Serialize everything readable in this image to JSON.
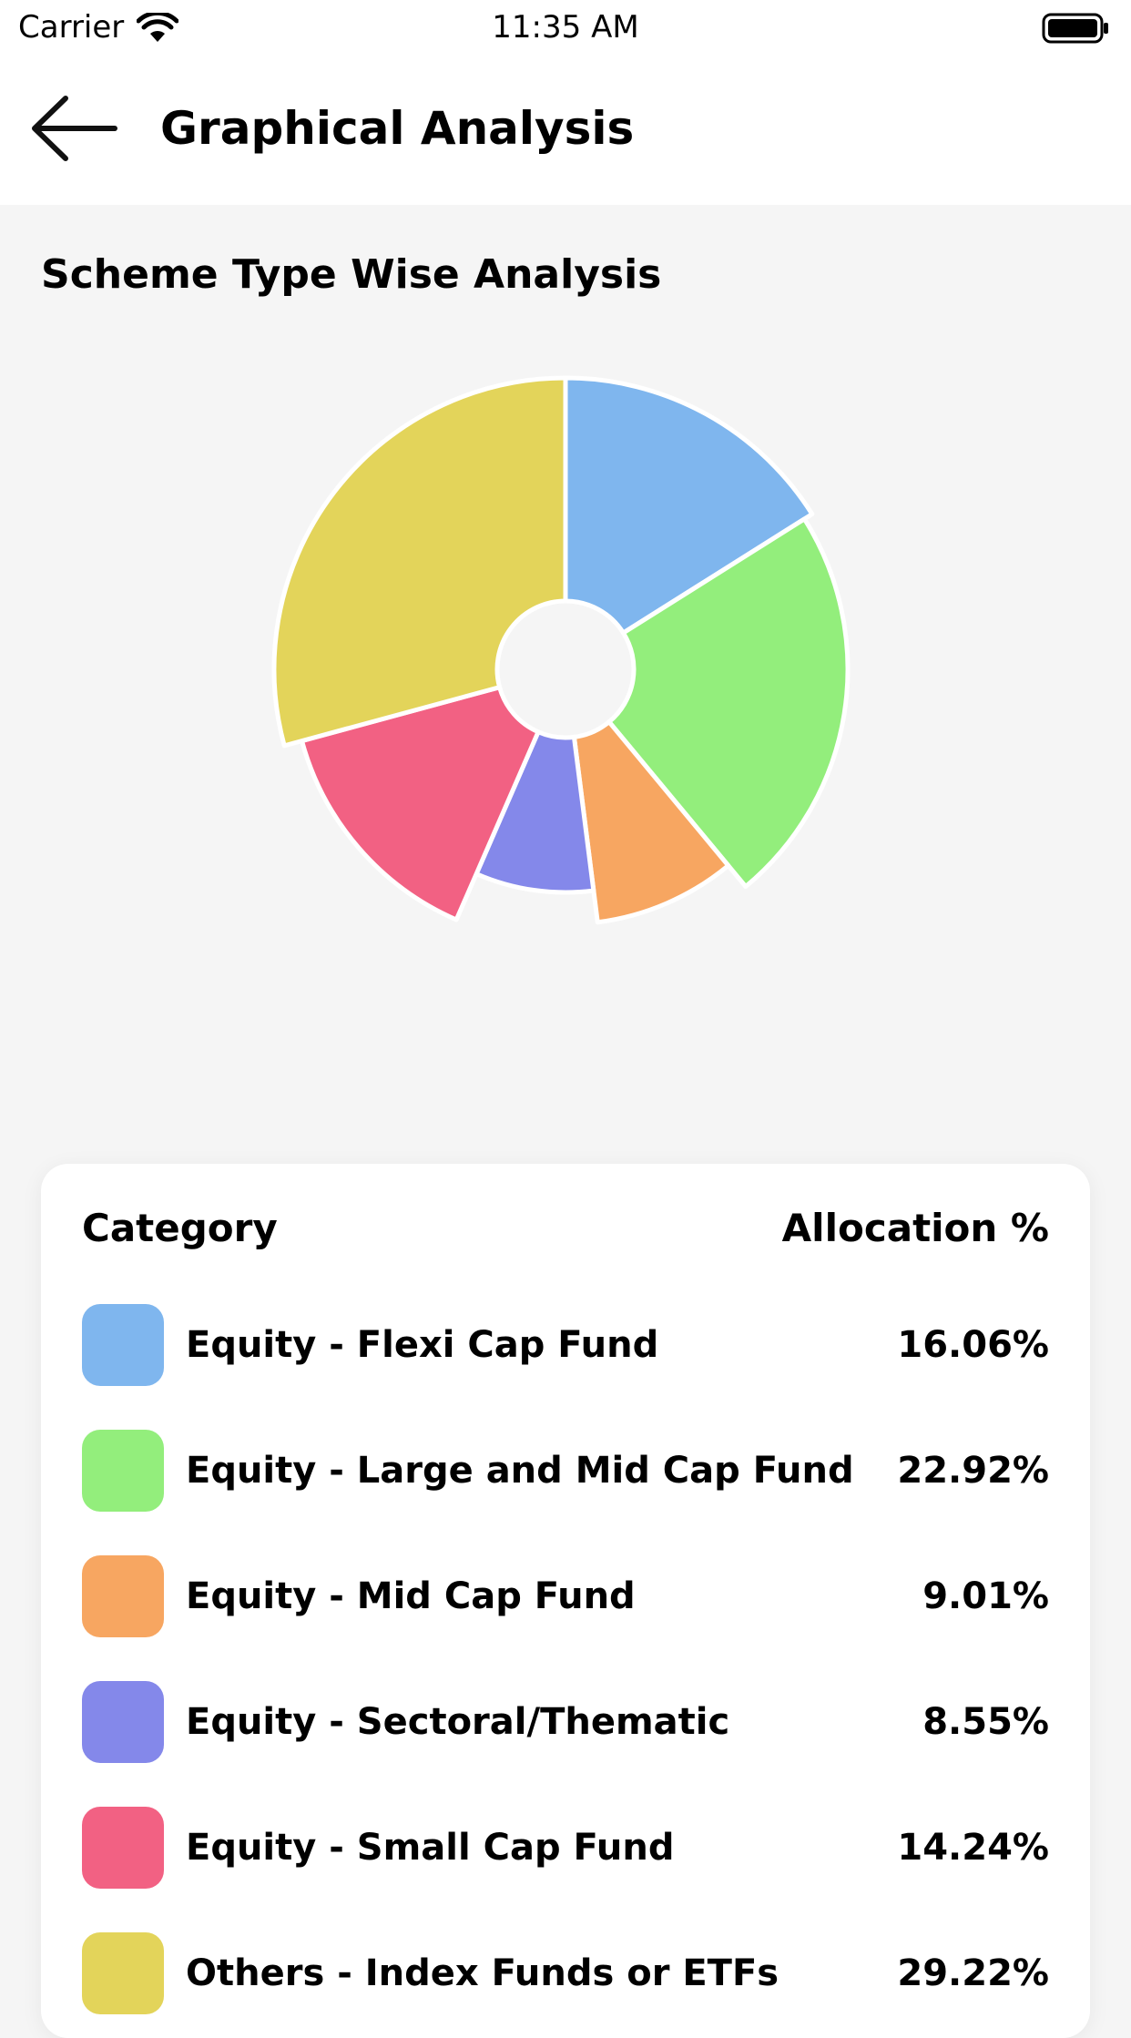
{
  "status_bar": {
    "carrier": "Carrier",
    "time": "11:35 AM",
    "wifi_icon": "wifi-icon",
    "battery_icon": "battery-icon"
  },
  "nav": {
    "back_icon": "arrow-left-icon",
    "title": "Graphical Analysis"
  },
  "section_title": "Scheme Type Wise Analysis",
  "chart_data": {
    "type": "pie",
    "title": "Scheme Type Wise Analysis",
    "categories": [
      "Equity - Flexi Cap Fund",
      "Equity - Large and Mid Cap Fund",
      "Equity - Mid Cap Fund",
      "Equity - Sectoral/Thematic",
      "Equity - Small Cap Fund",
      "Others - Index Funds or ETFs"
    ],
    "values": [
      16.06,
      22.92,
      9.01,
      8.55,
      14.24,
      29.22
    ],
    "colors": [
      "#7fb6ee",
      "#93ee7c",
      "#f7a661",
      "#8488ea",
      "#f26183",
      "#e3d45a"
    ],
    "donut": true
  },
  "legend": {
    "header_category": "Category",
    "header_allocation": "Allocation %",
    "rows": [
      {
        "label": "Equity - Flexi Cap Fund",
        "value": "16.06%",
        "color": "#7fb6ee"
      },
      {
        "label": "Equity - Large and Mid Cap Fund",
        "value": "22.92%",
        "color": "#93ee7c"
      },
      {
        "label": "Equity - Mid Cap Fund",
        "value": "9.01%",
        "color": "#f7a661"
      },
      {
        "label": "Equity - Sectoral/Thematic",
        "value": "8.55%",
        "color": "#8488ea"
      },
      {
        "label": "Equity - Small Cap Fund",
        "value": "14.24%",
        "color": "#f26183"
      },
      {
        "label": "Others - Index Funds or ETFs",
        "value": "29.22%",
        "color": "#e3d45a"
      }
    ]
  }
}
